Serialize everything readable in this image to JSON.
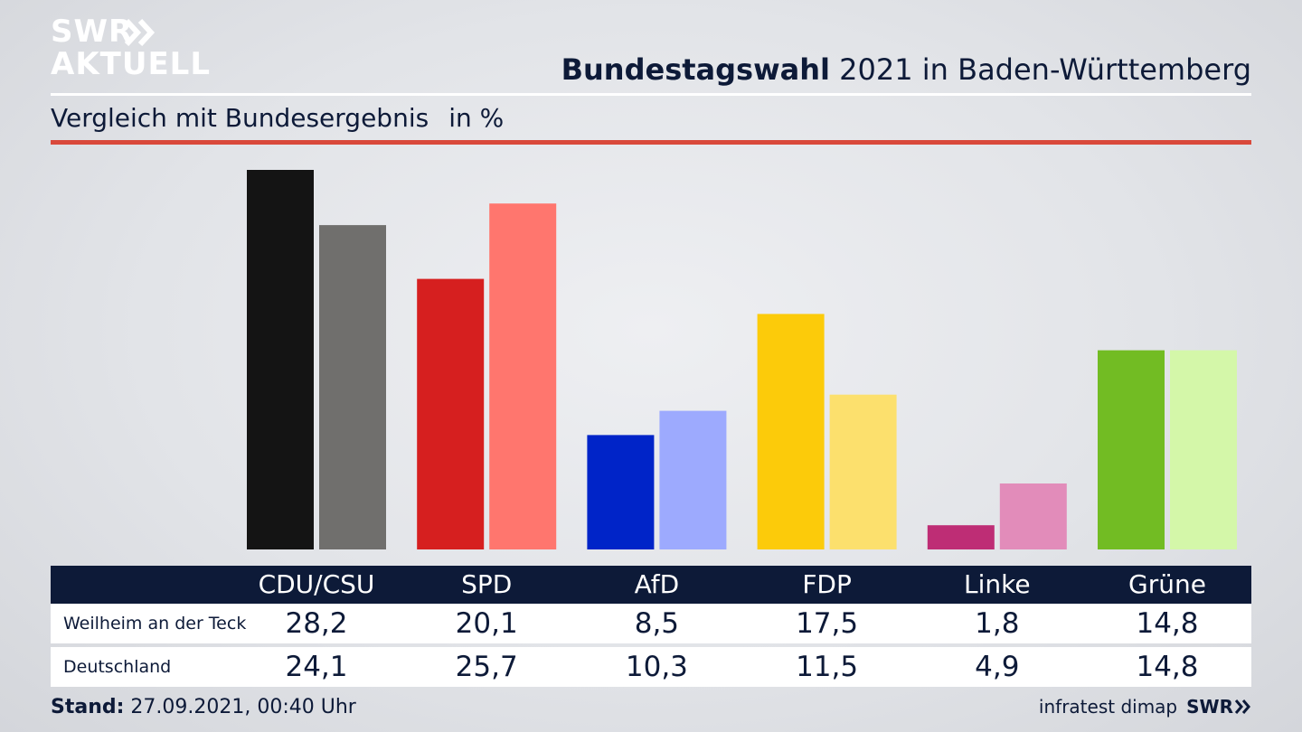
{
  "logo": {
    "line1": "SWR",
    "line2": "AKTUELL"
  },
  "title": {
    "bold": "Bundestagswahl",
    "rest": "2021 in Baden-Württemberg"
  },
  "subtitle": {
    "text": "Vergleich mit Bundesergebnis",
    "unit": "in %"
  },
  "footer": {
    "stand_label": "Stand:",
    "stand_value": "27.09.2021, 00:40 Uhr",
    "source": "infratest dimap",
    "source_logo": "SWR"
  },
  "colors": {
    "header_navy": "#0d1a38",
    "accent_red": "#d9493b",
    "parties_primary": [
      "#141414",
      "#d61f1f",
      "#0024c8",
      "#fccb0a",
      "#be2d75",
      "#72bc23"
    ],
    "parties_secondary": [
      "#706f6d",
      "#ff766e",
      "#9daafe",
      "#fce06d",
      "#e28cba",
      "#d4f7a9"
    ]
  },
  "chart_data": {
    "type": "bar",
    "categories": [
      "CDU/CSU",
      "SPD",
      "AfD",
      "FDP",
      "Linke",
      "Grüne"
    ],
    "series": [
      {
        "name": "Weilheim an der Teck",
        "values": [
          28.2,
          20.1,
          8.5,
          17.5,
          1.8,
          14.8
        ]
      },
      {
        "name": "Deutschland",
        "values": [
          24.1,
          25.7,
          10.3,
          11.5,
          4.9,
          14.8
        ]
      }
    ],
    "value_labels": [
      [
        "28,2",
        "20,1",
        "8,5",
        "17,5",
        "1,8",
        "14,8"
      ],
      [
        "24,1",
        "25,7",
        "10,3",
        "11,5",
        "4,9",
        "14,8"
      ]
    ],
    "ylim": [
      0,
      28.2
    ],
    "grid": false,
    "legend": "table below chart"
  }
}
